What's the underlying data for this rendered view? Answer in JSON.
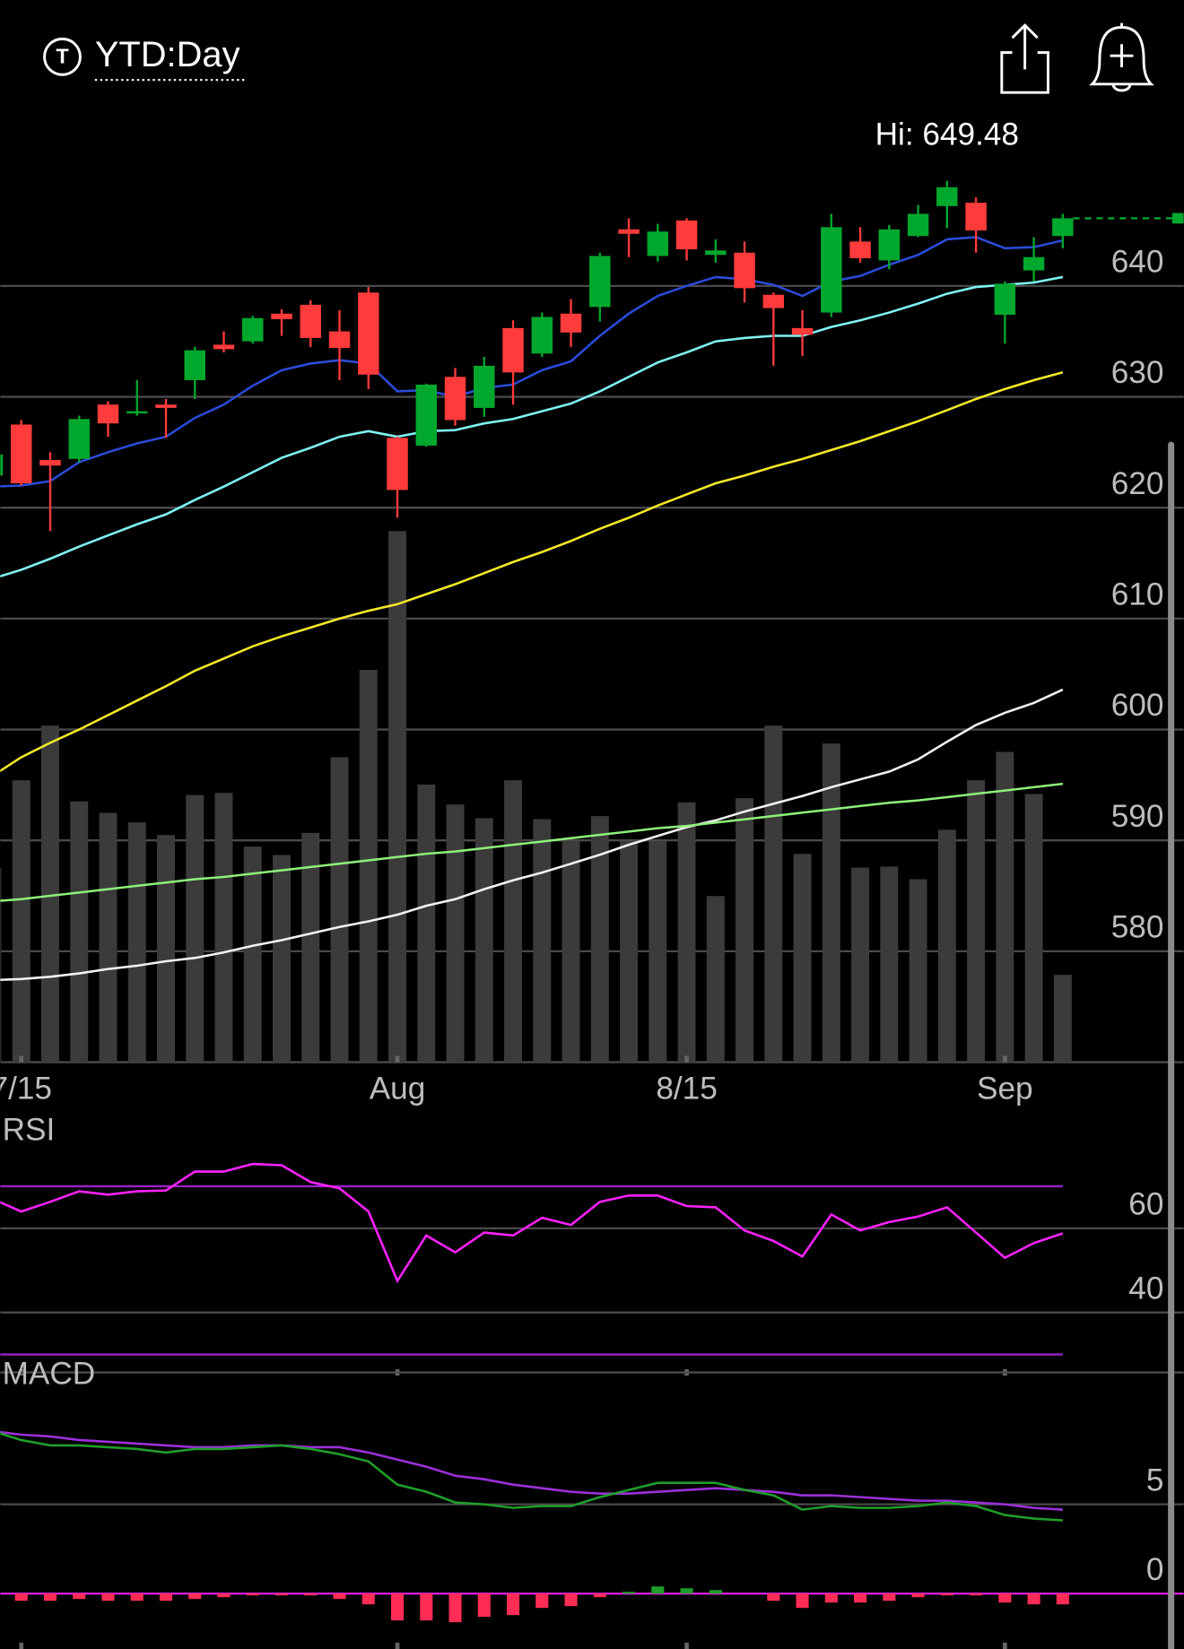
{
  "header": {
    "symbol_icon": "T",
    "title": "YTD:Day"
  },
  "chart_data": [
    {
      "type": "candlestick",
      "annotation": "Hi: 649.48",
      "categories": [
        null,
        "7/15",
        null,
        null,
        null,
        null,
        null,
        null,
        null,
        null,
        null,
        null,
        null,
        null,
        "Aug",
        null,
        null,
        null,
        null,
        null,
        null,
        null,
        null,
        null,
        "8/15",
        null,
        null,
        null,
        null,
        null,
        null,
        null,
        null,
        null,
        null,
        "Sep",
        null,
        null
      ],
      "open": [
        622.9,
        627.5,
        624.3,
        624.4,
        629.3,
        628.5,
        629.3,
        631.5,
        634.7,
        635.0,
        637.5,
        638.3,
        635.9,
        639.4,
        626.3,
        625.6,
        631.8,
        629.0,
        636.2,
        633.9,
        637.5,
        638.1,
        645.1,
        642.7,
        645.9,
        642.8,
        643.0,
        639.2,
        636.2,
        637.6,
        644.0,
        642.3,
        644.5,
        647.2,
        647.5,
        637.4,
        641.4,
        644.5
      ],
      "high": [
        625.0,
        627.9,
        625.0,
        628.3,
        629.6,
        631.5,
        629.8,
        634.5,
        635.9,
        637.3,
        637.9,
        638.7,
        637.8,
        639.9,
        626.4,
        631.2,
        632.6,
        633.6,
        636.9,
        637.6,
        638.8,
        643.0,
        646.1,
        645.6,
        646.1,
        644.2,
        644.0,
        639.4,
        637.8,
        646.5,
        645.3,
        645.5,
        647.3,
        649.48,
        648.0,
        640.4,
        644.4,
        646.5
      ],
      "low": [
        622.5,
        622.0,
        617.9,
        624.1,
        626.4,
        628.3,
        626.3,
        629.8,
        634.0,
        634.8,
        635.5,
        634.5,
        631.5,
        630.7,
        619.1,
        625.5,
        627.4,
        628.2,
        629.3,
        633.6,
        634.5,
        636.8,
        642.6,
        642.2,
        642.3,
        642.1,
        638.5,
        632.8,
        633.7,
        637.2,
        642.1,
        641.5,
        644.4,
        645.2,
        643.0,
        634.8,
        640.4,
        643.4
      ],
      "close": [
        624.8,
        622.2,
        623.8,
        628.0,
        627.6,
        628.7,
        629.0,
        634.2,
        634.3,
        637.1,
        637.0,
        635.3,
        634.4,
        632.0,
        621.6,
        631.1,
        627.9,
        632.8,
        632.2,
        637.2,
        635.8,
        642.7,
        644.7,
        644.9,
        643.3,
        643.2,
        639.8,
        638.0,
        635.6,
        645.3,
        642.5,
        645.1,
        646.5,
        648.9,
        645.0,
        640.2,
        642.6,
        646.1
      ],
      "up_color": "#00a82d",
      "down_color": "#ff3b3b",
      "overlays": [
        {
          "color": "#2a4bd7",
          "values": [
            621.9,
            622.0,
            622.4,
            624.1,
            625.0,
            625.8,
            626.4,
            628.1,
            629.3,
            631.0,
            632.4,
            633.0,
            633.3,
            633.0,
            630.5,
            630.6,
            630.0,
            630.8,
            631.1,
            632.4,
            633.2,
            635.5,
            637.5,
            639.1,
            640.0,
            640.8,
            640.6,
            640.1,
            639.1,
            640.4,
            640.9,
            641.9,
            642.8,
            644.2,
            644.4,
            643.4,
            643.5,
            644.1
          ]
        },
        {
          "color": "#7ff3f3",
          "values": [
            613.6,
            614.4,
            615.4,
            616.5,
            617.5,
            618.5,
            619.4,
            620.7,
            621.9,
            623.2,
            624.5,
            625.4,
            626.4,
            626.9,
            626.4,
            626.9,
            627.0,
            627.6,
            628.0,
            628.7,
            629.4,
            630.5,
            631.8,
            633.1,
            634.0,
            635.0,
            635.3,
            635.5,
            635.5,
            636.3,
            636.9,
            637.6,
            638.4,
            639.3,
            639.9,
            640.1,
            640.3,
            640.8
          ]
        },
        {
          "color": "#f5e829",
          "values": [
            595.8,
            597.5,
            598.8,
            600.0,
            601.3,
            602.6,
            603.9,
            605.3,
            606.4,
            607.5,
            608.4,
            609.2,
            610.0,
            610.7,
            611.3,
            612.2,
            613.1,
            614.1,
            615.1,
            616.0,
            617.0,
            618.1,
            619.1,
            620.2,
            621.2,
            622.2,
            622.9,
            623.7,
            624.4,
            625.2,
            626.0,
            626.9,
            627.8,
            628.8,
            629.8,
            630.7,
            631.5,
            632.2
          ]
        },
        {
          "color": "#f2f2f2",
          "values": [
            577.4,
            577.5,
            577.7,
            578.0,
            578.4,
            578.7,
            579.1,
            579.4,
            579.9,
            580.5,
            581.0,
            581.6,
            582.2,
            582.7,
            583.3,
            584.1,
            584.7,
            585.6,
            586.4,
            587.1,
            587.9,
            588.7,
            589.6,
            590.4,
            591.2,
            591.8,
            592.6,
            593.3,
            594.0,
            594.8,
            595.5,
            596.2,
            597.3,
            598.9,
            600.4,
            601.5,
            602.4,
            603.6
          ]
        },
        {
          "color": "#8ef07a",
          "values": [
            584.5,
            584.7,
            585.0,
            585.3,
            585.6,
            585.9,
            586.2,
            586.5,
            586.7,
            587.0,
            587.3,
            587.6,
            587.9,
            588.2,
            588.5,
            588.8,
            589.0,
            589.3,
            589.6,
            589.9,
            590.2,
            590.5,
            590.8,
            591.1,
            591.3,
            591.6,
            591.9,
            592.2,
            592.5,
            592.8,
            593.1,
            593.4,
            593.6,
            593.9,
            594.2,
            594.5,
            594.8,
            595.1
          ]
        }
      ],
      "volume": {
        "color": "#3b3b3b",
        "vlim": [
          0,
          910
        ],
        "values": [
          185,
          268,
          320,
          248,
          237,
          228,
          216,
          254,
          256,
          205,
          197,
          218,
          290,
          373,
          505,
          264,
          245,
          232,
          268,
          231,
          210,
          234,
          210,
          210,
          247,
          158,
          251,
          320,
          198,
          303,
          185,
          186,
          174,
          221,
          268,
          295,
          255,
          83
        ]
      },
      "ylim": [
        570,
        656.3
      ],
      "yticks": [
        580,
        590,
        600,
        610,
        620,
        630,
        640
      ],
      "grid": true
    },
    {
      "type": "line",
      "title": "RSI",
      "color": "#ff22ff",
      "values": [
        67.0,
        64.0,
        66.3,
        68.8,
        68.0,
        68.8,
        69.0,
        73.5,
        73.5,
        75.3,
        75.0,
        71.0,
        69.5,
        64.0,
        47.5,
        58.3,
        54.3,
        59.0,
        58.3,
        62.5,
        60.8,
        66.3,
        67.8,
        67.8,
        65.3,
        65.0,
        59.5,
        57.0,
        53.3,
        63.3,
        59.5,
        61.5,
        62.8,
        65.0,
        59.0,
        53.0,
        56.5,
        58.8
      ],
      "levels": [
        30,
        70
      ],
      "level_color": "#9a22c8",
      "ylim": [
        25,
        80
      ],
      "yticks": [
        40,
        60
      ],
      "grid": true
    },
    {
      "type": "macd",
      "title": "MACD",
      "macd": {
        "color": "#1f9e2a",
        "values": [
          9.1,
          8.6,
          8.3,
          8.3,
          8.2,
          8.1,
          7.9,
          8.1,
          8.1,
          8.2,
          8.3,
          8.1,
          7.8,
          7.4,
          6.1,
          5.7,
          5.1,
          5.0,
          4.8,
          4.9,
          4.9,
          5.4,
          5.8,
          6.2,
          6.2,
          6.2,
          5.8,
          5.5,
          4.7,
          4.9,
          4.8,
          4.8,
          4.9,
          5.1,
          4.9,
          4.4,
          4.2,
          4.1
        ]
      },
      "signal": {
        "color": "#9b30d9",
        "values": [
          9.1,
          8.9,
          8.8,
          8.6,
          8.5,
          8.4,
          8.3,
          8.2,
          8.2,
          8.3,
          8.3,
          8.2,
          8.2,
          7.9,
          7.5,
          7.1,
          6.6,
          6.4,
          6.1,
          5.9,
          5.7,
          5.6,
          5.6,
          5.7,
          5.8,
          5.9,
          5.8,
          5.7,
          5.5,
          5.5,
          5.4,
          5.3,
          5.2,
          5.2,
          5.1,
          5.0,
          4.8,
          4.7
        ]
      },
      "histogram": {
        "up_color": "#1f9e2a",
        "down_color": "#ff2d55",
        "values": [
          -0.3,
          -0.4,
          -0.4,
          -0.3,
          -0.4,
          -0.4,
          -0.4,
          -0.3,
          -0.2,
          -0.1,
          -0.1,
          -0.1,
          -0.3,
          -0.6,
          -1.5,
          -1.5,
          -1.6,
          -1.3,
          -1.2,
          -0.8,
          -0.7,
          -0.2,
          0.1,
          0.4,
          0.3,
          0.2,
          0.0,
          -0.4,
          -0.8,
          -0.5,
          -0.5,
          -0.4,
          -0.2,
          -0.1,
          -0.1,
          -0.5,
          -0.6,
          -0.6
        ]
      },
      "zero_color": "#e020e0",
      "ylim": [
        -3.1,
        11.5
      ],
      "yticks": [
        0,
        5
      ],
      "grid": true
    }
  ]
}
